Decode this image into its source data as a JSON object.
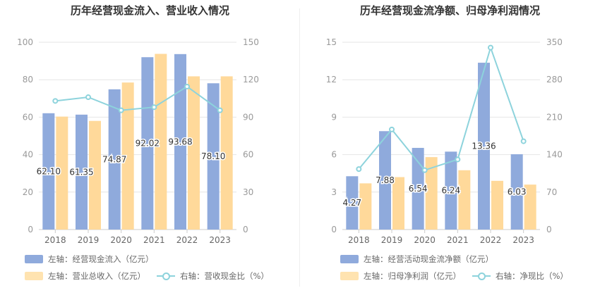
{
  "colors": {
    "bar1": "#8faadc",
    "bar2": "#ffd99a",
    "line": "#8dd3dc",
    "axis": "#999999",
    "grid": "#e6e6e6"
  },
  "chart_data": [
    {
      "type": "bar",
      "title": "历年经营现金流入、营业收入情况",
      "categories": [
        "2018",
        "2019",
        "2020",
        "2021",
        "2022",
        "2023"
      ],
      "ylim_left": [
        0,
        100
      ],
      "yticks_left": [
        0,
        20,
        40,
        60,
        80,
        100
      ],
      "ylim_right": [
        0,
        150
      ],
      "yticks_right": [
        0,
        30,
        60,
        90,
        120,
        150
      ],
      "series": [
        {
          "name": "左轴：经营现金流入（亿元）",
          "axis": "left",
          "kind": "bar",
          "values": [
            62.1,
            61.35,
            74.87,
            92.02,
            93.68,
            78.1
          ],
          "labels": [
            "62.10",
            "61.35",
            "74.87",
            "92.02",
            "93.68",
            "78.10"
          ]
        },
        {
          "name": "左轴：营业总收入（亿元）",
          "axis": "left",
          "kind": "bar",
          "values": [
            60.3,
            58.0,
            78.5,
            93.8,
            81.8,
            81.8
          ]
        },
        {
          "name": "右轴：营收现金比（%）",
          "axis": "right",
          "kind": "line",
          "values": [
            103,
            106,
            95.5,
            98,
            114.5,
            95.5
          ]
        }
      ]
    },
    {
      "type": "bar",
      "title": "历年经营现金流净额、归母净利润情况",
      "categories": [
        "2018",
        "2019",
        "2020",
        "2021",
        "2022",
        "2023"
      ],
      "ylim_left": [
        0,
        15
      ],
      "yticks_left": [
        0,
        3,
        6,
        9,
        12,
        15
      ],
      "ylim_right": [
        0,
        350
      ],
      "yticks_right": [
        0,
        70,
        140,
        210,
        280,
        350
      ],
      "series": [
        {
          "name": "左轴：经营活动现金流净额（亿元）",
          "axis": "left",
          "kind": "bar",
          "values": [
            4.27,
            7.88,
            6.54,
            6.24,
            13.36,
            6.03
          ],
          "labels": [
            "4.27",
            "7.88",
            "6.54",
            "6.24",
            "13.36",
            "6.03"
          ]
        },
        {
          "name": "左轴：归母净利润（亿元）",
          "axis": "left",
          "kind": "bar",
          "values": [
            3.7,
            4.2,
            5.8,
            4.75,
            3.9,
            3.6
          ]
        },
        {
          "name": "右轴：净现比（%）",
          "axis": "right",
          "kind": "line",
          "values": [
            113,
            187,
            111,
            131,
            340,
            165
          ]
        }
      ]
    }
  ]
}
